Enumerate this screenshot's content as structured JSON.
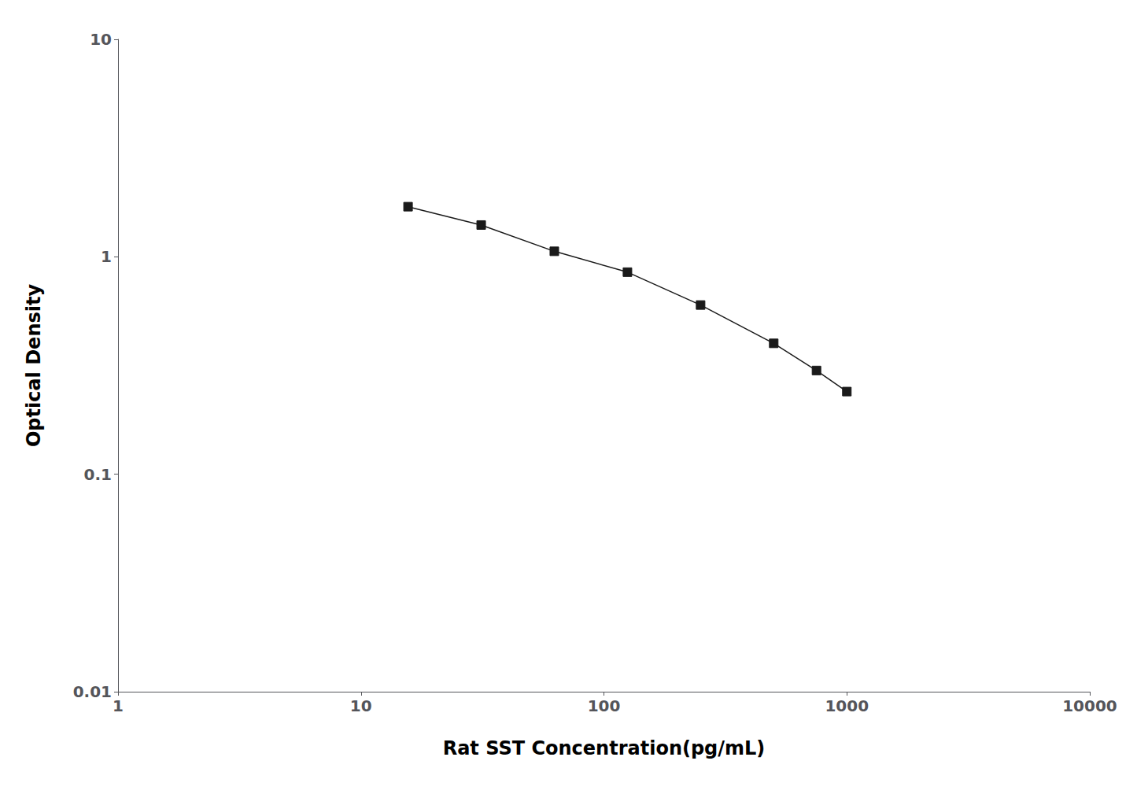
{
  "chart_data": {
    "type": "line",
    "x": [
      15.625,
      31.25,
      62.5,
      125,
      250,
      500,
      750,
      1000
    ],
    "values": [
      1.7,
      1.4,
      1.06,
      0.85,
      0.6,
      0.4,
      0.3,
      0.24
    ],
    "xlabel": "Rat SST Concentration(pg/mL)",
    "ylabel": "Optical Density",
    "xlim": [
      1,
      10000
    ],
    "ylim": [
      0.01,
      10
    ],
    "xticks": [
      1,
      10,
      100,
      1000,
      10000
    ],
    "yticks": [
      0.01,
      0.1,
      1,
      10
    ],
    "log": true,
    "grid": false,
    "color": "#1a1a1a",
    "marker": "square"
  }
}
